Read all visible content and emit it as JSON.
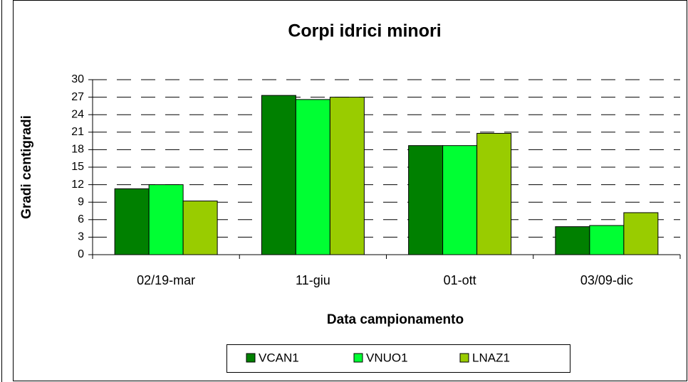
{
  "chart_data": {
    "type": "bar",
    "title": "Corpi idrici minori",
    "x_label": "Data campionamento",
    "y_label": "Gradi centigradi",
    "categories": [
      "02/19-mar",
      "11-giu",
      "01-ott",
      "03/09-dic"
    ],
    "series": [
      {
        "name": "VCAN1",
        "color": "#008000",
        "values": [
          11.3,
          27.3,
          18.7,
          4.8
        ]
      },
      {
        "name": "VNUO1",
        "color": "#00ff33",
        "values": [
          12,
          26.6,
          18.7,
          5
        ]
      },
      {
        "name": "LNAZ1",
        "color": "#99cc00",
        "values": [
          9.2,
          27,
          20.8,
          7.2
        ]
      }
    ],
    "ylim": [
      0,
      30
    ],
    "yticks": [
      0,
      3,
      6,
      9,
      12,
      15,
      18,
      21,
      24,
      27,
      30
    ],
    "grid": true,
    "legend": "bottom"
  }
}
